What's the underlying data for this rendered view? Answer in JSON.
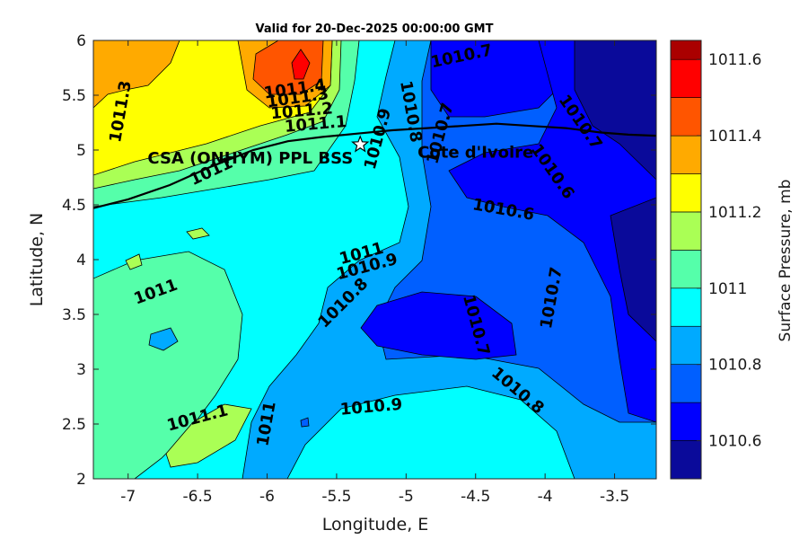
{
  "chart_data": {
    "type": "contour",
    "title": "Valid for 20-Dec-2025 00:00:00 GMT",
    "xlabel": "Longitude, E",
    "ylabel": "Latitude, N",
    "xlim": [
      -7.25,
      -3.2
    ],
    "ylim": [
      2,
      6
    ],
    "xticks": [
      "-7",
      "-6.5",
      "-6",
      "-5.5",
      "-5",
      "-4.5",
      "-4",
      "-3.5"
    ],
    "yticks": [
      "2",
      "2.5",
      "3",
      "3.5",
      "4",
      "4.5",
      "5",
      "5.5",
      "6"
    ],
    "colorbar": {
      "label": "Surface Pressure, mb",
      "range": [
        1010.5,
        1011.65
      ],
      "ticks": [
        "1010.6",
        "1010.8",
        "1011",
        "1011.2",
        "1011.4",
        "1011.6"
      ],
      "levels": [
        1010.5,
        1010.6,
        1010.65,
        1010.7,
        1010.75,
        1010.8,
        1010.85,
        1010.9,
        1010.95,
        1011.0,
        1011.05,
        1011.1,
        1011.15,
        1011.2,
        1011.25,
        1011.3,
        1011.35,
        1011.4,
        1011.45,
        1011.5,
        1011.55,
        1011.65
      ],
      "colors": [
        "#00008f",
        "#0000ff",
        "#0050ff",
        "#00a0ff",
        "#00ffff",
        "#50ffa0",
        "#a0ff50",
        "#ffff00",
        "#ffaa00",
        "#ff5000",
        "#ff0000",
        "#a00000"
      ],
      "bands": [
        {
          "from": 1010.5,
          "to": 1010.6,
          "color": "#0a0a9a"
        },
        {
          "from": 1010.6,
          "to": 1010.7,
          "color": "#0000ff"
        },
        {
          "from": 1010.7,
          "to": 1010.8,
          "color": "#005fff"
        },
        {
          "from": 1010.8,
          "to": 1010.9,
          "color": "#00aaff"
        },
        {
          "from": 1010.9,
          "to": 1011.0,
          "color": "#00ffff"
        },
        {
          "from": 1011.0,
          "to": 1011.1,
          "color": "#55ffaa"
        },
        {
          "from": 1011.1,
          "to": 1011.2,
          "color": "#aaff55"
        },
        {
          "from": 1011.2,
          "to": 1011.3,
          "color": "#ffff00"
        },
        {
          "from": 1011.3,
          "to": 1011.4,
          "color": "#ffaa00"
        },
        {
          "from": 1011.4,
          "to": 1011.5,
          "color": "#ff5500"
        },
        {
          "from": 1011.5,
          "to": 1011.6,
          "color": "#ff0000"
        },
        {
          "from": 1011.6,
          "to": 1011.65,
          "color": "#aa0000"
        }
      ]
    },
    "contour_labels": [
      {
        "text": "1011.3",
        "lon": -7.05,
        "lat": 5.35,
        "angle": -80
      },
      {
        "text": "1011.4",
        "lon": -5.8,
        "lat": 5.55,
        "angle": -8
      },
      {
        "text": "1011.3",
        "lon": -5.78,
        "lat": 5.47,
        "angle": -8
      },
      {
        "text": "1011.2",
        "lon": -5.75,
        "lat": 5.35,
        "angle": -5
      },
      {
        "text": "1011.1",
        "lon": -5.65,
        "lat": 5.23,
        "angle": -5
      },
      {
        "text": "1011",
        "lon": -6.4,
        "lat": 4.8,
        "angle": -25
      },
      {
        "text": "1010.9",
        "lon": -5.2,
        "lat": 5.1,
        "angle": -75
      },
      {
        "text": "1010.8",
        "lon": -4.97,
        "lat": 5.35,
        "angle": 80
      },
      {
        "text": "1010.7",
        "lon": -4.75,
        "lat": 5.15,
        "angle": -75
      },
      {
        "text": "1010.7",
        "lon": -4.6,
        "lat": 5.85,
        "angle": -12
      },
      {
        "text": "1010.7",
        "lon": -3.75,
        "lat": 5.25,
        "angle": 55
      },
      {
        "text": "1010.6",
        "lon": -3.95,
        "lat": 4.8,
        "angle": 55
      },
      {
        "text": "1010.6",
        "lon": -4.3,
        "lat": 4.45,
        "angle": 10
      },
      {
        "text": "1011",
        "lon": -5.32,
        "lat": 4.05,
        "angle": -15
      },
      {
        "text": "1010.9",
        "lon": -5.28,
        "lat": 3.93,
        "angle": -15
      },
      {
        "text": "1010.8",
        "lon": -5.45,
        "lat": 3.6,
        "angle": -45
      },
      {
        "text": "1011",
        "lon": -6.8,
        "lat": 3.7,
        "angle": -20
      },
      {
        "text": "1010.7",
        "lon": -3.95,
        "lat": 3.65,
        "angle": -80
      },
      {
        "text": "1010.7",
        "lon": -4.5,
        "lat": 3.4,
        "angle": 75
      },
      {
        "text": "1010.8",
        "lon": -4.2,
        "lat": 2.8,
        "angle": 40
      },
      {
        "text": "1010.9",
        "lon": -5.25,
        "lat": 2.65,
        "angle": -5
      },
      {
        "text": "1011.1",
        "lon": -6.5,
        "lat": 2.55,
        "angle": -15
      },
      {
        "text": "1011",
        "lon": -6.0,
        "lat": 2.5,
        "angle": -80
      }
    ],
    "site": {
      "label": "CSA (ONHYM) PPL BSS",
      "lon": -5.33,
      "lat": 5.05
    },
    "country_label": {
      "text": "Cote d'Ivoire",
      "lon": -4.5,
      "lat": 4.93
    },
    "coastline": [
      [
        -7.25,
        4.47
      ],
      [
        -7.0,
        4.55
      ],
      [
        -6.7,
        4.68
      ],
      [
        -6.4,
        4.85
      ],
      [
        -6.1,
        5.0
      ],
      [
        -5.85,
        5.08
      ],
      [
        -5.6,
        5.12
      ],
      [
        -5.35,
        5.15
      ],
      [
        -5.1,
        5.18
      ],
      [
        -4.85,
        5.2
      ],
      [
        -4.6,
        5.22
      ],
      [
        -4.35,
        5.24
      ],
      [
        -4.1,
        5.22
      ],
      [
        -3.85,
        5.2
      ],
      [
        -3.6,
        5.16
      ],
      [
        -3.4,
        5.14
      ],
      [
        -3.2,
        5.13
      ]
    ]
  }
}
